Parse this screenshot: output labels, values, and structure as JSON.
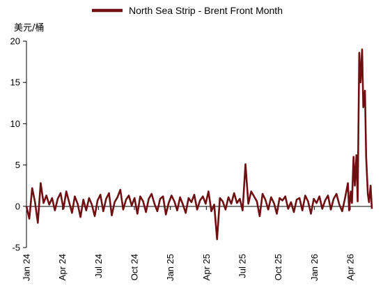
{
  "chart_data": {
    "type": "line",
    "title": "",
    "unit_label": "美元/桶",
    "ylim": [
      -5,
      20
    ],
    "y_ticks": [
      -5,
      0,
      5,
      10,
      15,
      20
    ],
    "x_tick_labels": [
      "Jan 24",
      "Apr 24",
      "Jul 24",
      "Oct 24",
      "Jan 25",
      "Apr 25",
      "Jul 25",
      "Oct 25",
      "Jan 26",
      "Apr 26"
    ],
    "x_range": [
      "2024-01-01",
      "2026-04-30"
    ],
    "legend_position": "top-center",
    "grid": false,
    "series": [
      {
        "name": "North Sea Strip - Brent Front Month",
        "color": "#6e0f12",
        "x": [
          "2024-01-01",
          "2024-01-08",
          "2024-01-15",
          "2024-01-22",
          "2024-01-29",
          "2024-02-05",
          "2024-02-12",
          "2024-02-19",
          "2024-02-26",
          "2024-03-04",
          "2024-03-11",
          "2024-03-18",
          "2024-03-25",
          "2024-04-01",
          "2024-04-08",
          "2024-04-15",
          "2024-04-22",
          "2024-04-29",
          "2024-05-06",
          "2024-05-13",
          "2024-05-20",
          "2024-05-27",
          "2024-06-03",
          "2024-06-10",
          "2024-06-17",
          "2024-06-24",
          "2024-07-01",
          "2024-07-08",
          "2024-07-15",
          "2024-07-22",
          "2024-07-29",
          "2024-08-05",
          "2024-08-12",
          "2024-08-19",
          "2024-08-26",
          "2024-09-02",
          "2024-09-09",
          "2024-09-16",
          "2024-09-23",
          "2024-09-30",
          "2024-10-07",
          "2024-10-14",
          "2024-10-21",
          "2024-10-28",
          "2024-11-04",
          "2024-11-11",
          "2024-11-18",
          "2024-11-25",
          "2024-12-02",
          "2024-12-09",
          "2024-12-16",
          "2024-12-23",
          "2024-12-30",
          "2025-01-06",
          "2025-01-13",
          "2025-01-20",
          "2025-01-27",
          "2025-02-03",
          "2025-02-10",
          "2025-02-17",
          "2025-02-24",
          "2025-03-03",
          "2025-03-10",
          "2025-03-17",
          "2025-03-24",
          "2025-03-31",
          "2025-04-07",
          "2025-04-14",
          "2025-04-21",
          "2025-04-28",
          "2025-05-05",
          "2025-05-12",
          "2025-05-19",
          "2025-05-26",
          "2025-06-02",
          "2025-06-09",
          "2025-06-16",
          "2025-06-23",
          "2025-06-30",
          "2025-07-07",
          "2025-07-14",
          "2025-07-21",
          "2025-07-28",
          "2025-08-04",
          "2025-08-11",
          "2025-08-18",
          "2025-08-25",
          "2025-09-01",
          "2025-09-08",
          "2025-09-15",
          "2025-09-22",
          "2025-09-29",
          "2025-10-06",
          "2025-10-13",
          "2025-10-20",
          "2025-10-27",
          "2025-11-03",
          "2025-11-10",
          "2025-11-17",
          "2025-11-24",
          "2025-12-01",
          "2025-12-08",
          "2025-12-15",
          "2025-12-22",
          "2025-12-29",
          "2026-01-05",
          "2026-01-12",
          "2026-01-19",
          "2026-01-26",
          "2026-02-02",
          "2026-02-09",
          "2026-02-16",
          "2026-02-23",
          "2026-03-02",
          "2026-03-05",
          "2026-03-09",
          "2026-03-12",
          "2026-03-16",
          "2026-03-19",
          "2026-03-23",
          "2026-03-26",
          "2026-03-30",
          "2026-04-02",
          "2026-04-06",
          "2026-04-09",
          "2026-04-13",
          "2026-04-16",
          "2026-04-20",
          "2026-04-23",
          "2026-04-27",
          "2026-04-30"
        ],
        "values": [
          0.0,
          -1.5,
          2.2,
          0.5,
          -2.0,
          2.8,
          0.4,
          1.3,
          0.2,
          1.0,
          -0.5,
          0.9,
          1.6,
          -0.3,
          1.8,
          0.5,
          -0.8,
          1.2,
          0.3,
          -1.3,
          0.8,
          -0.5,
          1.0,
          0.2,
          -1.2,
          0.7,
          1.4,
          -0.6,
          0.9,
          1.6,
          -1.1,
          0.5,
          1.1,
          2.0,
          -0.4,
          0.8,
          1.3,
          0.1,
          1.0,
          -0.9,
          1.2,
          0.6,
          -0.7,
          0.9,
          1.5,
          0.3,
          -0.6,
          0.9,
          1.2,
          -1.0,
          0.4,
          1.3,
          0.6,
          -0.5,
          1.1,
          0.2,
          -0.8,
          1.0,
          0.5,
          1.4,
          -0.4,
          0.7,
          1.2,
          0.3,
          1.8,
          -0.6,
          0.2,
          -4.0,
          1.0,
          0.6,
          -0.4,
          1.1,
          0.3,
          1.6,
          0.4,
          0.9,
          -0.5,
          5.1,
          0.3,
          1.8,
          1.2,
          0.6,
          -1.2,
          1.5,
          0.8,
          -0.4,
          1.1,
          0.4,
          -0.9,
          1.0,
          0.7,
          1.2,
          -0.3,
          0.5,
          -0.7,
          0.8,
          1.0,
          -0.5,
          1.3,
          0.6,
          -0.9,
          0.9,
          0.4,
          1.2,
          -0.3,
          0.7,
          1.3,
          -0.4,
          0.9,
          1.5,
          0.2,
          -0.6,
          1.0,
          2.8,
          -0.5,
          1.8,
          0.4,
          6.0,
          2.5,
          6.2,
          0.6,
          18.6,
          15.0,
          19.0,
          12.0,
          14.0,
          6.0,
          1.5,
          0.5,
          2.5,
          -0.3
        ]
      }
    ]
  }
}
